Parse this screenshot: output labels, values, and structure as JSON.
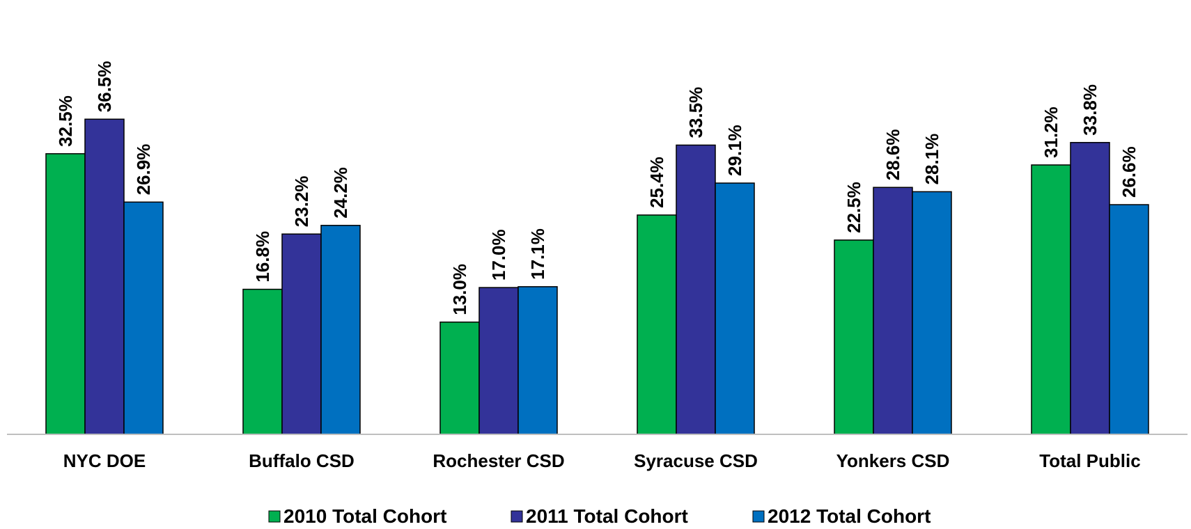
{
  "chart_data": {
    "type": "bar",
    "title": "",
    "xlabel": "",
    "ylabel": "",
    "ylim": [
      0,
      40
    ],
    "grid": false,
    "legend_position": "bottom",
    "categories": [
      "NYC DOE",
      "Buffalo CSD",
      "Rochester CSD",
      "Syracuse CSD",
      "Yonkers CSD",
      "Total Public"
    ],
    "series": [
      {
        "name": "2010 Total Cohort",
        "color": "#00B050",
        "values": [
          32.5,
          16.8,
          13.0,
          25.4,
          22.5,
          31.2
        ],
        "labels": [
          "32.5%",
          "16.8%",
          "13.0%",
          "25.4%",
          "22.5%",
          "31.2%"
        ]
      },
      {
        "name": "2011 Total Cohort",
        "color": "#333399",
        "values": [
          36.5,
          23.2,
          17.0,
          33.5,
          28.6,
          33.8
        ],
        "labels": [
          "36.5%",
          "23.2%",
          "17.0%",
          "33.5%",
          "28.6%",
          "33.8%"
        ]
      },
      {
        "name": "2012 Total Cohort",
        "color": "#0070C0",
        "values": [
          26.9,
          24.2,
          17.1,
          29.1,
          28.1,
          26.6
        ],
        "labels": [
          "26.9%",
          "24.2%",
          "17.1%",
          "29.1%",
          "28.1%",
          "26.6%"
        ]
      }
    ]
  }
}
